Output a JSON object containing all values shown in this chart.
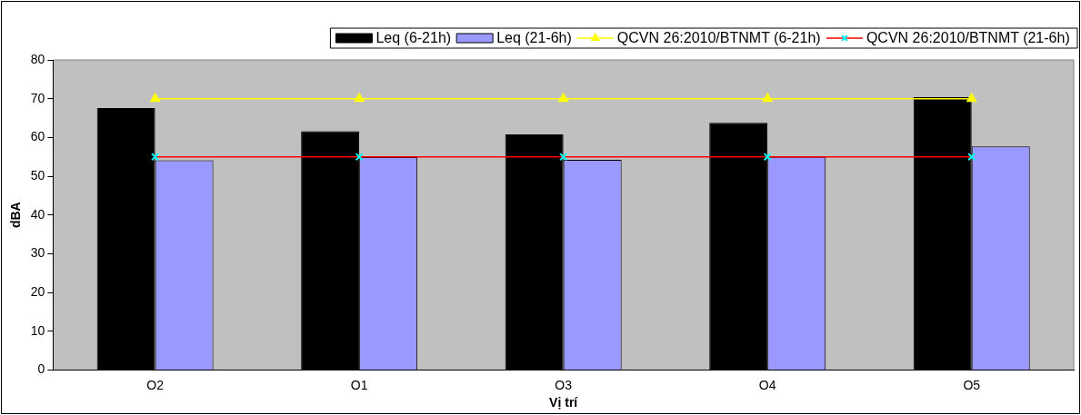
{
  "chart_data": {
    "type": "bar",
    "xlabel": "Vị trí",
    "ylabel": "dBA",
    "categories": [
      "O2",
      "O1",
      "O3",
      "O4",
      "O5"
    ],
    "series": [
      {
        "name": "Leq (6-21h)",
        "color": "#000000",
        "values": [
          67.6,
          61.6,
          60.8,
          63.8,
          70.4
        ]
      },
      {
        "name": "Leq (21-6h)",
        "color": "#9999ff",
        "values": [
          54.1,
          54.9,
          54.2,
          55,
          57.7
        ]
      },
      {
        "name": "QCVN 26:2010/BTNMT (6-21h)",
        "type": "line",
        "color": "#ffff00",
        "marker": "triangle",
        "values": [
          70,
          70,
          70,
          70,
          70
        ]
      },
      {
        "name": "QCVN 26:2010/BTNMT (21-6h)",
        "type": "line",
        "color": "#ff0000",
        "marker": "cross",
        "values": [
          55,
          55,
          55,
          55,
          55
        ]
      }
    ],
    "ylim": [
      0,
      80
    ],
    "yticks": [
      0,
      10,
      20,
      30,
      40,
      50,
      60,
      70,
      80
    ],
    "grid": false,
    "legend": "top right"
  }
}
